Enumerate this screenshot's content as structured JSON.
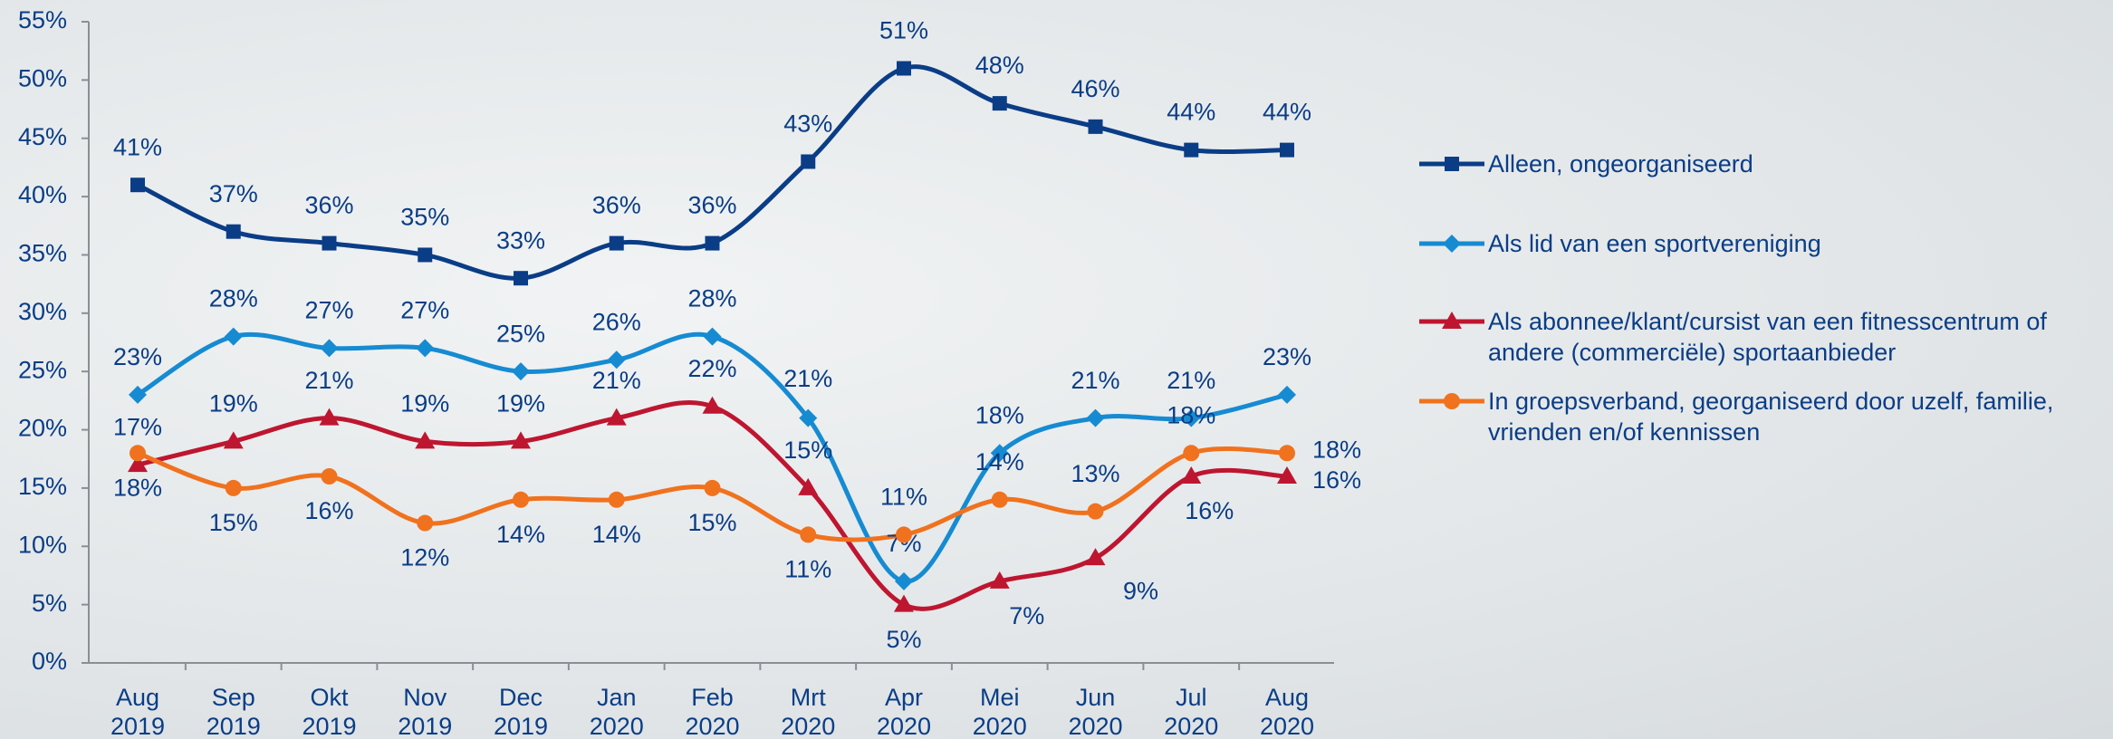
{
  "chart_data": {
    "type": "line",
    "categories": [
      "Aug 2019",
      "Sep 2019",
      "Okt 2019",
      "Nov 2019",
      "Dec 2019",
      "Jan 2020",
      "Feb 2020",
      "Mrt 2020",
      "Apr 2020",
      "Mei 2020",
      "Jun 2020",
      "Jul 2020",
      "Aug 2020"
    ],
    "series": [
      {
        "name": "Alleen, ongeorganiseerd",
        "color": "#0a3d86",
        "marker": "square",
        "values": [
          41,
          37,
          36,
          35,
          33,
          36,
          36,
          43,
          51,
          48,
          46,
          44,
          44
        ],
        "value_labels": [
          "41%",
          "37%",
          "36%",
          "35%",
          "33%",
          "36%",
          "36%",
          "43%",
          "51%",
          "48%",
          "46%",
          "44%",
          "44%"
        ]
      },
      {
        "name": "Als lid van een sportvereniging",
        "color": "#168bd2",
        "marker": "diamond",
        "values": [
          23,
          28,
          27,
          27,
          25,
          26,
          28,
          21,
          7,
          18,
          21,
          21,
          23
        ],
        "value_labels": [
          "23%",
          "28%",
          "27%",
          "27%",
          "25%",
          "26%",
          "28%",
          "21%",
          "7%",
          "18%",
          "21%",
          "21%",
          "23%"
        ]
      },
      {
        "name": "Als abonnee/klant/cursist van een fitnesscentrum of andere (commerciële) sportaanbieder",
        "color": "#be1630",
        "marker": "triangle",
        "values": [
          17,
          19,
          21,
          19,
          19,
          21,
          22,
          15,
          5,
          7,
          9,
          16,
          16
        ],
        "value_labels": [
          "17%",
          "19%",
          "21%",
          "19%",
          "19%",
          "21%",
          "22%",
          "15%",
          "5%",
          "7%",
          "9%",
          "16%",
          "16%"
        ]
      },
      {
        "name": "In groepsverband, georganiseerd door uzelf, familie, vrienden en/of kennissen",
        "color": "#f0721e",
        "marker": "circle",
        "values": [
          18,
          15,
          16,
          12,
          14,
          14,
          15,
          11,
          11,
          14,
          13,
          18,
          18
        ],
        "value_labels": [
          "18%",
          "15%",
          "16%",
          "12%",
          "14%",
          "14%",
          "15%",
          "11%",
          "11%",
          "14%",
          "13%",
          "18%",
          "18%"
        ]
      }
    ],
    "ylim": [
      0,
      55
    ],
    "yticks": [
      {
        "value": 0,
        "label": "0%"
      },
      {
        "value": 5,
        "label": "5%"
      },
      {
        "value": 10,
        "label": "10%"
      },
      {
        "value": 15,
        "label": "15%"
      },
      {
        "value": 20,
        "label": "20%"
      },
      {
        "value": 25,
        "label": "25%"
      },
      {
        "value": 30,
        "label": "30%"
      },
      {
        "value": 35,
        "label": "35%"
      },
      {
        "value": 40,
        "label": "40%"
      },
      {
        "value": 45,
        "label": "45%"
      },
      {
        "value": 50,
        "label": "50%"
      },
      {
        "value": 55,
        "label": "55%"
      }
    ],
    "legend": "right"
  }
}
